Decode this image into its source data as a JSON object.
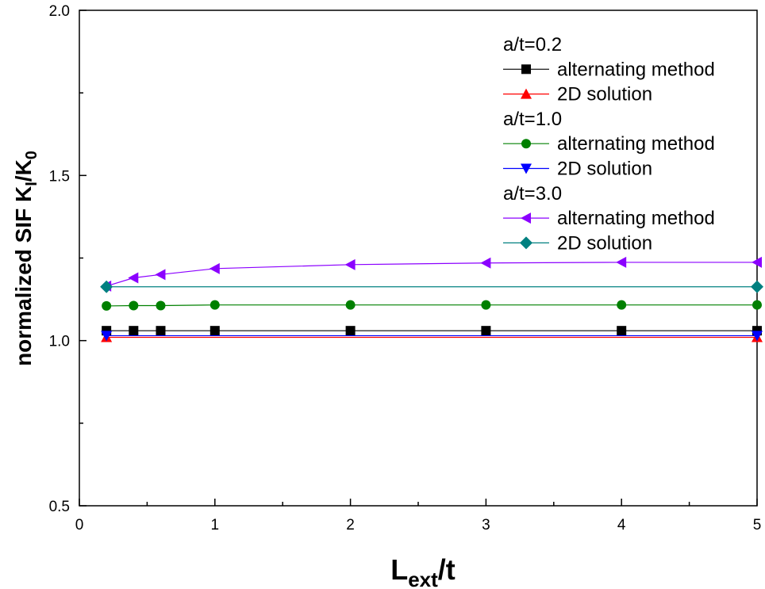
{
  "chart_data": {
    "type": "line",
    "title": "",
    "xlabel": {
      "main": "L",
      "sub": "ext",
      "rest": "/t"
    },
    "ylabel": {
      "p1": "normalized SIF K",
      "sub1": "I",
      "p2": "/K",
      "sub2": "0"
    },
    "xlim": [
      0,
      5
    ],
    "ylim": [
      0.5,
      2.0
    ],
    "xticks": [
      0,
      1,
      2,
      3,
      4,
      5
    ],
    "yticks": [
      0.5,
      1.0,
      1.5,
      2.0
    ],
    "xtick_labels": [
      "0",
      "1",
      "2",
      "3",
      "4",
      "5"
    ],
    "ytick_labels": [
      "0.5",
      "1.0",
      "1.5",
      "2.0"
    ],
    "grid": false,
    "legend_placement": "top-right",
    "legend_groups": [
      {
        "title": "a/t=0.2",
        "series": [
          0,
          1
        ]
      },
      {
        "title": "a/t=1.0",
        "series": [
          2,
          3
        ]
      },
      {
        "title": "a/t=3.0",
        "series": [
          4,
          5
        ]
      }
    ],
    "series": [
      {
        "name": "alternating method",
        "color": "#000000",
        "marker": "square",
        "x": [
          0.2,
          0.4,
          0.6,
          1,
          2,
          3,
          4,
          5
        ],
        "y": [
          1.03,
          1.03,
          1.03,
          1.03,
          1.03,
          1.03,
          1.03,
          1.03
        ]
      },
      {
        "name": "2D solution",
        "color": "#ff0000",
        "marker": "triangle-up",
        "x": [
          0.2,
          5
        ],
        "y": [
          1.01,
          1.01
        ]
      },
      {
        "name": "alternating method",
        "color": "#008000",
        "marker": "circle",
        "x": [
          0.2,
          0.4,
          0.6,
          1,
          2,
          3,
          4,
          5
        ],
        "y": [
          1.105,
          1.106,
          1.106,
          1.108,
          1.108,
          1.108,
          1.108,
          1.108
        ]
      },
      {
        "name": "2D solution",
        "color": "#0000ff",
        "marker": "triangle-down",
        "x": [
          0.2,
          5
        ],
        "y": [
          1.015,
          1.015
        ]
      },
      {
        "name": "alternating method",
        "color": "#8b00ff",
        "marker": "triangle-left",
        "x": [
          0.2,
          0.4,
          0.6,
          1,
          2,
          3,
          4,
          5
        ],
        "y": [
          1.165,
          1.19,
          1.2,
          1.218,
          1.23,
          1.235,
          1.237,
          1.237
        ]
      },
      {
        "name": "2D solution",
        "color": "#008080",
        "marker": "diamond",
        "x": [
          0.2,
          5
        ],
        "y": [
          1.163,
          1.163
        ]
      }
    ]
  }
}
